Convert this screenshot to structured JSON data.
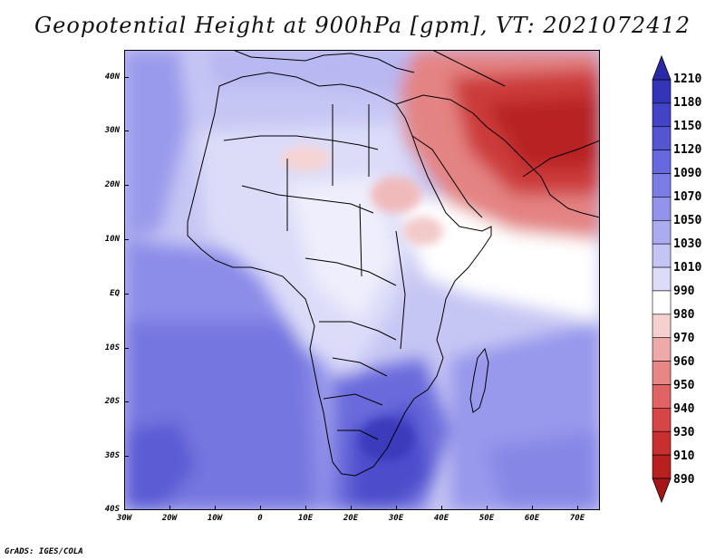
{
  "title": "Geopotential Height at 900hPa [gpm], VT: 2021072412",
  "footer": "GrADS: IGES/COLA",
  "map": {
    "y_ticks": [
      "40N",
      "30N",
      "20N",
      "10N",
      "EQ",
      "10S",
      "20S",
      "30S",
      "40S"
    ],
    "x_ticks": [
      "30W",
      "20W",
      "10W",
      "0",
      "10E",
      "20E",
      "30E",
      "40E",
      "50E",
      "60E",
      "70E"
    ],
    "lon_range": [
      -30,
      75
    ],
    "lat_range": [
      -40,
      45
    ]
  },
  "colorbar": {
    "labels": [
      "1210",
      "1180",
      "1150",
      "1120",
      "1090",
      "1070",
      "1050",
      "1030",
      "1010",
      "990",
      "980",
      "970",
      "960",
      "950",
      "940",
      "930",
      "910",
      "890"
    ],
    "colors": [
      "#2a2aa8",
      "#3434b8",
      "#4343c6",
      "#5555d2",
      "#6868de",
      "#7c7ce6",
      "#9393ec",
      "#ababf0",
      "#c4c4f5",
      "#dcdcf9",
      "#ffffff",
      "#f6cfcf",
      "#efa9a9",
      "#e88686",
      "#e06464",
      "#d64646",
      "#c83030",
      "#b81f1f",
      "#a51717"
    ]
  }
}
